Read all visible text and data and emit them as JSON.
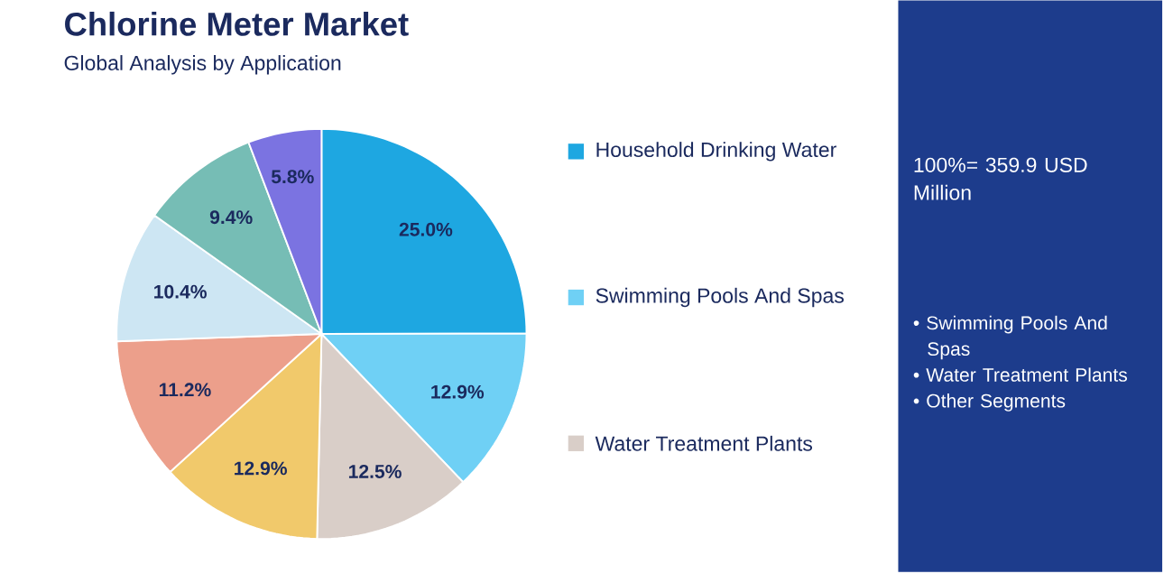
{
  "chart_data": {
    "type": "pie",
    "title": "Chlorine Meter Market",
    "subtitle": "Global Analysis by Application",
    "categories": [
      "Household Drinking Water",
      "Swimming Pools And Spas",
      "Water Treatment Plants",
      null,
      null,
      null,
      null,
      null
    ],
    "values": [
      25.0,
      12.9,
      12.5,
      12.9,
      11.2,
      10.4,
      9.4,
      5.8
    ],
    "colors": [
      "#1ea7e1",
      "#6fd0f5",
      "#d9cec8",
      "#f1c96b",
      "#ec9f8b",
      "#cde6f3",
      "#76bdb5",
      "#7b73e1"
    ],
    "value_labels": [
      "25.0%",
      "12.9%",
      "12.5%",
      "12.9%",
      "11.2%",
      "10.4%",
      "9.4%",
      "5.8%"
    ],
    "legend": "right",
    "annotations": [
      "100%= 359.9 USD Million",
      "• Swimming Pools And Spas",
      "• Water Treatment Plants",
      "• Other Segments"
    ]
  }
}
